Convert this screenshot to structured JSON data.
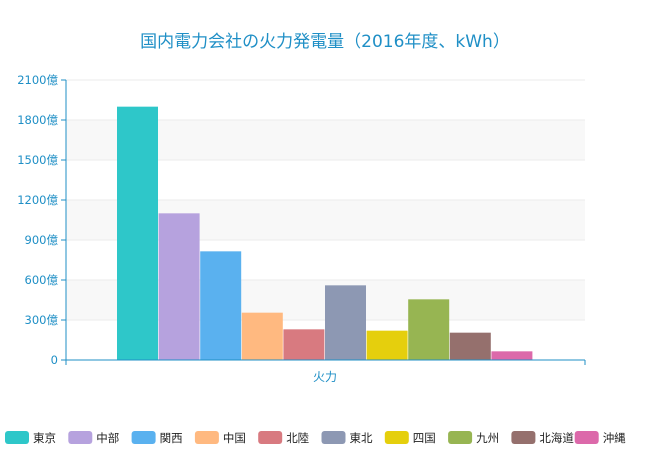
{
  "chart_data": {
    "type": "bar",
    "title": "国内電力会社の火力発電量（2016年度、kWh）",
    "categories": [
      "火力"
    ],
    "ylim": [
      0,
      2100
    ],
    "ytick_values": [
      0,
      300,
      600,
      900,
      1200,
      1500,
      1800,
      2100
    ],
    "ytick_labels": [
      "0",
      "300億",
      "600億",
      "900億",
      "1200億",
      "1500億",
      "1800億",
      "2100億"
    ],
    "grid": true,
    "legend_position": "bottom",
    "series": [
      {
        "name": "東京",
        "values": [
          1900
        ],
        "color": "#2ec7c9"
      },
      {
        "name": "中部",
        "values": [
          1100
        ],
        "color": "#b6a2de"
      },
      {
        "name": "関西",
        "values": [
          815
        ],
        "color": "#5ab1ef"
      },
      {
        "name": "中国",
        "values": [
          355
        ],
        "color": "#ffb980"
      },
      {
        "name": "北陸",
        "values": [
          230
        ],
        "color": "#d87a80"
      },
      {
        "name": "東北",
        "values": [
          560
        ],
        "color": "#8d98b3"
      },
      {
        "name": "四国",
        "values": [
          220
        ],
        "color": "#e5cf0d"
      },
      {
        "name": "九州",
        "values": [
          455
        ],
        "color": "#97b552"
      },
      {
        "name": "北海道",
        "values": [
          205
        ],
        "color": "#95706d"
      },
      {
        "name": "沖縄",
        "values": [
          65
        ],
        "color": "#dc69aa"
      }
    ]
  }
}
